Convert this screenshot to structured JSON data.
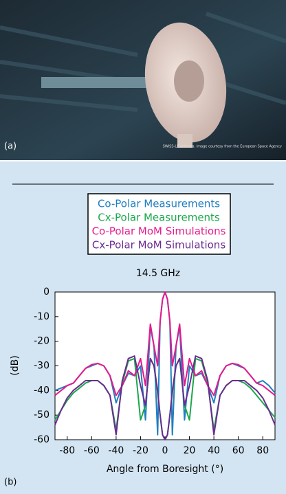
{
  "panel_a": {
    "label": "(a)",
    "credit": "SWISS-LE antenna. Image courtesy from the European Space Agency"
  },
  "panel_b_label": "(b)",
  "chart_data": {
    "type": "line",
    "title": "14.5 GHz",
    "x_label": "Angle from Boresight (°)",
    "y_label": "(dB)",
    "xlim": [
      -90,
      90
    ],
    "xticks": [
      -80,
      -60,
      -40,
      -20,
      0,
      20,
      40,
      60,
      80
    ],
    "ylim": [
      -60,
      0
    ],
    "yticks": [
      0,
      -10,
      -20,
      -30,
      -40,
      -50,
      -60
    ],
    "grid": false,
    "x": [
      -90,
      -85,
      -80,
      -75,
      -70,
      -65,
      -60,
      -55,
      -50,
      -45,
      -40,
      -35,
      -30,
      -25,
      -20,
      -16,
      -12,
      -9,
      -6,
      -4,
      -2,
      0,
      2,
      4,
      6,
      9,
      12,
      16,
      20,
      25,
      30,
      35,
      40,
      45,
      50,
      55,
      60,
      65,
      70,
      75,
      80,
      85,
      90
    ],
    "series": [
      {
        "name": "Co-Polar Measurements",
        "color": "#1f7fc0",
        "values": [
          -40,
          -39,
          -38,
          -37,
          -34,
          -31,
          -30,
          -29,
          -30,
          -34,
          -45,
          -38,
          -33,
          -34,
          -30,
          -52,
          -14,
          -22,
          -58,
          -12,
          -3,
          0,
          -3,
          -12,
          -58,
          -22,
          -14,
          -52,
          -30,
          -34,
          -33,
          -38,
          -45,
          -34,
          -30,
          -29,
          -30,
          -31,
          -34,
          -37,
          -36,
          -38,
          -41
        ]
      },
      {
        "name": "Cx-Polar Measurements",
        "color": "#1aa84a",
        "values": [
          -52,
          -48,
          -44,
          -41,
          -39,
          -37,
          -36,
          -36,
          -38,
          -42,
          -56,
          -37,
          -28,
          -27,
          -52,
          -46,
          -27,
          -30,
          -41,
          -50,
          -58,
          -60,
          -58,
          -50,
          -41,
          -30,
          -27,
          -46,
          -52,
          -27,
          -28,
          -37,
          -56,
          -42,
          -38,
          -36,
          -36,
          -37,
          -39,
          -42,
          -45,
          -48,
          -51
        ]
      },
      {
        "name": "Co-Polar MoM Simulations",
        "color": "#e6198c",
        "values": [
          -42,
          -40,
          -38,
          -37,
          -34,
          -31,
          -29.5,
          -29,
          -30,
          -34,
          -42,
          -38,
          -32,
          -34,
          -27,
          -38,
          -13,
          -22,
          -30,
          -12,
          -3,
          0,
          -3,
          -12,
          -30,
          -22,
          -13,
          -38,
          -27,
          -34,
          -32,
          -38,
          -42,
          -34,
          -30,
          -29,
          -29.5,
          -31,
          -34,
          -37,
          -38,
          -40,
          -42
        ]
      },
      {
        "name": "Cx-Polar MoM Simulations",
        "color": "#6a2c91",
        "values": [
          -54,
          -48,
          -43,
          -40,
          -38,
          -36,
          -36,
          -36,
          -38,
          -42,
          -58,
          -36,
          -27,
          -26,
          -38,
          -46,
          -27,
          -30,
          -40,
          -50,
          -58,
          -60,
          -58,
          -50,
          -40,
          -30,
          -27,
          -46,
          -38,
          -26,
          -27,
          -36,
          -58,
          -42,
          -38,
          -36,
          -36,
          -36,
          -38,
          -40,
          -43,
          -48,
          -54
        ]
      }
    ]
  }
}
